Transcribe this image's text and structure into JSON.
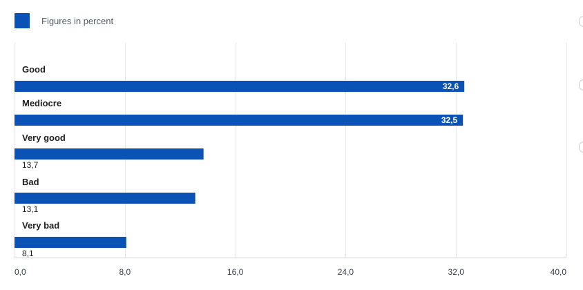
{
  "legend": {
    "label": "Figures in percent",
    "color": "#0a52b5"
  },
  "chart_data": {
    "type": "bar",
    "orientation": "horizontal",
    "categories": [
      "Good",
      "Mediocre",
      "Very good",
      "Bad",
      "Very bad"
    ],
    "values": [
      32.6,
      32.5,
      13.7,
      13.1,
      8.1
    ],
    "value_labels": [
      "32,6",
      "32,5",
      "13,7",
      "13,1",
      "8,1"
    ],
    "series": [
      {
        "name": "Figures in percent",
        "values": [
          32.6,
          32.5,
          13.7,
          13.1,
          8.1
        ]
      }
    ],
    "xlim": [
      0,
      40
    ],
    "xticks": [
      0,
      8,
      16,
      24,
      32,
      40
    ],
    "xtick_labels": [
      "0,0",
      "8,0",
      "16,0",
      "24,0",
      "32,0",
      "40,0"
    ],
    "grid": true,
    "bar_color": "#0a52b5"
  }
}
